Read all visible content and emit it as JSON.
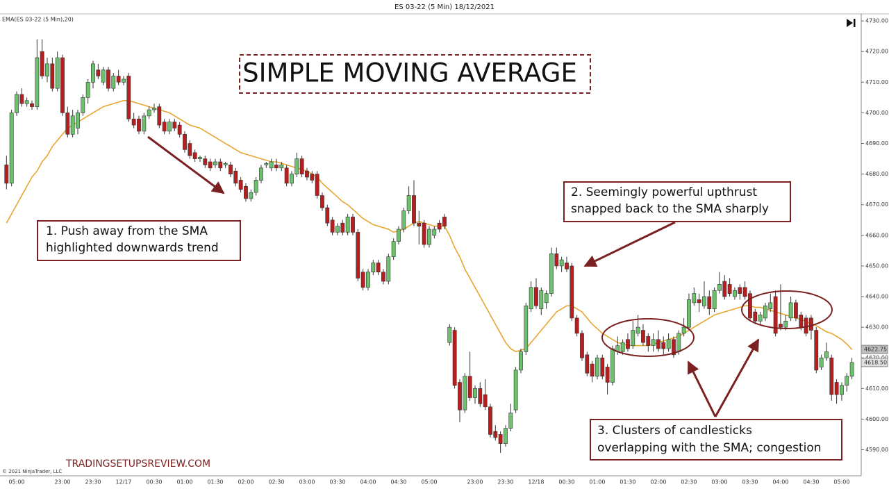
{
  "chart_data": {
    "type": "candlestick",
    "title": "ES 03-22 (5 Min)  18/12/2021",
    "indicator_label": "EMA(ES 03-22 (5 Min),20)",
    "headline": "SIMPLE MOVING AVERAGE",
    "annotations": [
      {
        "lines": [
          "1. Push away from the SMA",
          "highlighted downwards trend"
        ]
      },
      {
        "lines": [
          "2. Seemingly powerful upthrust",
          "snapped back to the SMA sharply"
        ]
      },
      {
        "lines": [
          "3. Clusters of candlesticks",
          "overlapping with the SMA; congestion"
        ]
      }
    ],
    "watermark": "TRADINGSETUPSREVIEW.COM",
    "copyright": "© 2021 NinjaTrader, LLC",
    "up_color": "#6cc16c",
    "down_color": "#b51f1f",
    "ylim": [
      4581.5,
      4732.3
    ],
    "yticks": [
      {
        "value": 4730,
        "label": "4730.00"
      },
      {
        "value": 4720,
        "label": "4720.00"
      },
      {
        "value": 4710,
        "label": "4710.00"
      },
      {
        "value": 4700,
        "label": "4700.00"
      },
      {
        "value": 4690,
        "label": "4690.00"
      },
      {
        "value": 4680,
        "label": "4680.00"
      },
      {
        "value": 4670,
        "label": "4670.00"
      },
      {
        "value": 4660,
        "label": "4660.00"
      },
      {
        "value": 4650,
        "label": "4650.00"
      },
      {
        "value": 4640,
        "label": "4640.00"
      },
      {
        "value": 4630,
        "label": "4630.00"
      },
      {
        "value": 4620,
        "label": "4620.00"
      },
      {
        "value": 4610,
        "label": "4610.00"
      },
      {
        "value": 4600,
        "label": "4600.00"
      },
      {
        "value": 4590,
        "label": "4590.00"
      }
    ],
    "categories": [
      null,
      null,
      "05:00",
      null,
      null,
      null,
      null,
      null,
      null,
      null,
      null,
      "23:00",
      null,
      null,
      null,
      null,
      null,
      "23:30",
      null,
      null,
      null,
      null,
      null,
      "12/17",
      null,
      null,
      null,
      null,
      null,
      "00:30",
      null,
      null,
      null,
      null,
      null,
      "01:00",
      null,
      null,
      null,
      null,
      null,
      "01:30",
      null,
      null,
      null,
      null,
      null,
      "02:00",
      null,
      null,
      null,
      null,
      null,
      "02:30",
      null,
      null,
      null,
      null,
      null,
      "03:00",
      null,
      null,
      null,
      null,
      null,
      "03:30",
      null,
      null,
      null,
      null,
      null,
      "04:00",
      null,
      null,
      null,
      null,
      null,
      "04:30",
      null,
      null,
      null,
      null,
      null,
      "05:00",
      null,
      null,
      null,
      null,
      null,
      null,
      null,
      null,
      "23:00",
      null,
      null,
      null,
      null,
      null,
      "23:30",
      null,
      null,
      null,
      null,
      null,
      "12/18",
      null,
      null,
      null,
      null,
      null,
      "00:30",
      null,
      null,
      null,
      null,
      null,
      "01:00",
      null,
      null,
      null,
      null,
      null,
      "01:30",
      null,
      null,
      null,
      null,
      null,
      "02:00",
      null,
      null,
      null,
      null,
      null,
      "02:30",
      null,
      null,
      null,
      null,
      null,
      "03:00",
      null,
      null,
      null,
      null,
      null,
      "03:30",
      null,
      null,
      null,
      null,
      null,
      "04:00",
      null,
      null,
      null,
      null,
      null,
      "04:30",
      null,
      null,
      null,
      null,
      null,
      "05:00",
      null,
      null
    ],
    "candles": [
      [
        4683,
        4686,
        4675,
        4677
      ],
      [
        4677,
        4701,
        4676,
        4700
      ],
      [
        4700,
        4707,
        4699,
        4706
      ],
      [
        4706,
        4708,
        4702,
        4703
      ],
      [
        4703,
        4705,
        4702,
        4704
      ],
      [
        4703,
        4704,
        4701,
        4702
      ],
      [
        4702,
        4724,
        4701,
        4718
      ],
      [
        4720,
        4724,
        4711,
        4712
      ],
      [
        4712,
        4718,
        4710,
        4716
      ],
      [
        4716,
        4718,
        4707,
        4708
      ],
      [
        4708,
        4720,
        4707,
        4718
      ],
      [
        4718,
        4719,
        4699,
        4700
      ],
      [
        4700,
        4702,
        4692,
        4693
      ],
      [
        4693,
        4701,
        4692,
        4699
      ],
      [
        4695,
        4701,
        4693,
        4700
      ],
      [
        4700,
        4706,
        4699,
        4705
      ],
      [
        4705,
        4711,
        4703,
        4710
      ],
      [
        4710,
        4717,
        4708,
        4716
      ],
      [
        4714,
        4716,
        4711,
        4712
      ],
      [
        4710,
        4715,
        4709,
        4714
      ],
      [
        4714,
        4715,
        4707,
        4708
      ],
      [
        4708,
        4713,
        4707,
        4712
      ],
      [
        4712,
        4714,
        4709,
        4710
      ],
      [
        4710,
        4712,
        4709,
        4711
      ],
      [
        4712,
        4713,
        4697,
        4698
      ],
      [
        4698,
        4700,
        4695,
        4696
      ],
      [
        4698,
        4699,
        4693,
        4694
      ],
      [
        4694,
        4700,
        4693,
        4699
      ],
      [
        4699,
        4702,
        4698,
        4701
      ],
      [
        4701,
        4703,
        4700,
        4701.5
      ],
      [
        4702,
        4703,
        4695,
        4696
      ],
      [
        4697,
        4698,
        4693,
        4694
      ],
      [
        4694,
        4698,
        4693,
        4697
      ],
      [
        4697,
        4698,
        4694,
        4695
      ],
      [
        4696,
        4697,
        4692,
        4693
      ],
      [
        4693,
        4694,
        4687,
        4688
      ],
      [
        4690,
        4691,
        4685,
        4686
      ],
      [
        4687,
        4688,
        4684,
        4685
      ],
      [
        4685,
        4686,
        4684,
        4685.5
      ],
      [
        4685,
        4686,
        4682,
        4683
      ],
      [
        4684,
        4685,
        4681,
        4682
      ],
      [
        4683,
        4685,
        4682,
        4684
      ],
      [
        4684,
        4685,
        4681,
        4682
      ],
      [
        4683,
        4684,
        4682,
        4683.5
      ],
      [
        4683,
        4684,
        4679,
        4680
      ],
      [
        4681,
        4682,
        4676,
        4677
      ],
      [
        4678,
        4679,
        4674,
        4675
      ],
      [
        4676,
        4677,
        4671,
        4672
      ],
      [
        4672,
        4675,
        4671,
        4674
      ],
      [
        4674,
        4679,
        4673,
        4678
      ],
      [
        4678,
        4683,
        4677,
        4682
      ],
      [
        4683,
        4684,
        4682,
        4683.5
      ],
      [
        4682,
        4685,
        4681,
        4684
      ],
      [
        4683,
        4685,
        4681,
        4682
      ],
      [
        4682,
        4684,
        4681,
        4683
      ],
      [
        4682,
        4683,
        4676,
        4677
      ],
      [
        4677,
        4681,
        4676,
        4680
      ],
      [
        4680,
        4687,
        4679,
        4685
      ],
      [
        4685,
        4686,
        4679,
        4680
      ],
      [
        4681,
        4682,
        4678,
        4679
      ],
      [
        4680,
        4681,
        4677,
        4678
      ],
      [
        4680,
        4681,
        4672,
        4673
      ],
      [
        4673,
        4674,
        4668,
        4669
      ],
      [
        4669,
        4670,
        4663,
        4664
      ],
      [
        4665,
        4666,
        4660,
        4661
      ],
      [
        4661,
        4664,
        4660,
        4663
      ],
      [
        4664,
        4665,
        4660,
        4661
      ],
      [
        4661,
        4667,
        4660,
        4666
      ],
      [
        4666,
        4667,
        4660,
        4661
      ],
      [
        4661,
        4662,
        4645,
        4646
      ],
      [
        4648,
        4649,
        4642,
        4643
      ],
      [
        4643,
        4649,
        4642,
        4648
      ],
      [
        4648,
        4652,
        4647,
        4651
      ],
      [
        4651,
        4652,
        4647,
        4648
      ],
      [
        4648,
        4649,
        4644,
        4645
      ],
      [
        4645,
        4654,
        4644,
        4653
      ],
      [
        4653,
        4659,
        4652,
        4658
      ],
      [
        4658,
        4663,
        4657,
        4662
      ],
      [
        4662,
        4669,
        4661,
        4668
      ],
      [
        4668,
        4676,
        4667,
        4673
      ],
      [
        4673,
        4678,
        4663,
        4664
      ],
      [
        4664,
        4668,
        4657,
        4663
      ],
      [
        4664,
        4665,
        4656,
        4657
      ],
      [
        4657,
        4663,
        4656,
        4662
      ],
      [
        4660,
        4663,
        4659,
        4662
      ],
      [
        4664,
        4665,
        4661,
        4662
      ],
      [
        4666,
        4667,
        4662,
        4663
      ],
      [
        4625,
        4631,
        4624,
        4630
      ],
      [
        4629,
        4630,
        4610,
        4611
      ],
      [
        4612,
        4613,
        4599,
        4603
      ],
      [
        4603,
        4615,
        4602,
        4614
      ],
      [
        4614,
        4622,
        4606,
        4607
      ],
      [
        4607,
        4611,
        4605,
        4610
      ],
      [
        4610,
        4612,
        4604,
        4605
      ],
      [
        4608,
        4613,
        4603,
        4604
      ],
      [
        4604,
        4605,
        4594,
        4595
      ],
      [
        4596,
        4598,
        4593,
        4594
      ],
      [
        4595,
        4596,
        4589,
        4592
      ],
      [
        4592,
        4598,
        4591,
        4597
      ],
      [
        4597,
        4605,
        4596,
        4602
      ],
      [
        4603,
        4617,
        4602,
        4616
      ],
      [
        4616,
        4623,
        4615,
        4622
      ],
      [
        4622,
        4638,
        4621,
        4637
      ],
      [
        4636,
        4645,
        4635,
        4643
      ],
      [
        4643,
        4646,
        4636,
        4637
      ],
      [
        4636,
        4643,
        4634,
        4642
      ],
      [
        4638,
        4642,
        4636,
        4641
      ],
      [
        4641,
        4656,
        4640,
        4654
      ],
      [
        4654,
        4656,
        4649,
        4650
      ],
      [
        4650,
        4653,
        4648,
        4652
      ],
      [
        4651,
        4653,
        4648,
        4649
      ],
      [
        4650,
        4651,
        4632,
        4633
      ],
      [
        4633,
        4634,
        4627,
        4628
      ],
      [
        4628,
        4629,
        4619,
        4620
      ],
      [
        4621,
        4622,
        4614,
        4615
      ],
      [
        4618,
        4619,
        4612,
        4614
      ],
      [
        4614,
        4621,
        4613,
        4620
      ],
      [
        4620,
        4621,
        4613,
        4614
      ],
      [
        4617,
        4618,
        4608,
        4612
      ],
      [
        4612,
        4624,
        4611,
        4623
      ],
      [
        4622,
        4627,
        4621,
        4624
      ],
      [
        4622,
        4626,
        4621,
        4625
      ],
      [
        4626,
        4628,
        4622,
        4623
      ],
      [
        4624,
        4632,
        4623,
        4629
      ],
      [
        4628,
        4634,
        4627,
        4630
      ],
      [
        4629,
        4631,
        4624,
        4625
      ],
      [
        4627,
        4628,
        4622,
        4624
      ],
      [
        4624,
        4628,
        4622,
        4626
      ],
      [
        4626,
        4629,
        4622,
        4623
      ],
      [
        4625,
        4627,
        4621,
        4623
      ],
      [
        4623,
        4628,
        4622,
        4626
      ],
      [
        4626,
        4627,
        4620,
        4621
      ],
      [
        4622,
        4629,
        4621,
        4628
      ],
      [
        4628,
        4633,
        4627,
        4630
      ],
      [
        4630,
        4641,
        4629,
        4639
      ],
      [
        4638,
        4643,
        4637,
        4641
      ],
      [
        4639,
        4641,
        4635,
        4638
      ],
      [
        4637,
        4645,
        4636,
        4640
      ],
      [
        4640,
        4642,
        4634,
        4636
      ],
      [
        4636,
        4643,
        4635,
        4642
      ],
      [
        4642,
        4648,
        4641,
        4644
      ],
      [
        4645,
        4647,
        4639,
        4640
      ],
      [
        4644,
        4646,
        4640,
        4641
      ],
      [
        4640,
        4643,
        4639,
        4642
      ],
      [
        4643,
        4644,
        4639,
        4641
      ],
      [
        4643,
        4645,
        4639,
        4640
      ],
      [
        4641,
        4642,
        4632,
        4633
      ],
      [
        4635,
        4636,
        4631,
        4632
      ],
      [
        4632,
        4635,
        4631,
        4634
      ],
      [
        4633,
        4638,
        4632,
        4637
      ],
      [
        4636,
        4641,
        4635,
        4638
      ],
      [
        4640,
        4642,
        4627,
        4628
      ],
      [
        4631,
        4644,
        4629,
        4630
      ],
      [
        4630,
        4634,
        4629,
        4632
      ],
      [
        4633,
        4640,
        4632,
        4638
      ],
      [
        4638,
        4639,
        4632,
        4633
      ],
      [
        4634,
        4635,
        4629,
        4630
      ],
      [
        4633,
        4634,
        4627,
        4628
      ],
      [
        4633,
        4634,
        4626,
        4629
      ],
      [
        4629,
        4630,
        4615,
        4616
      ],
      [
        4617,
        4621,
        4616,
        4620
      ],
      [
        4620,
        4625,
        4619,
        4622
      ],
      [
        4620,
        4621,
        4606,
        4608
      ],
      [
        4612,
        4613,
        4605,
        4608
      ],
      [
        4608,
        4612,
        4606,
        4611
      ],
      [
        4611,
        4615,
        4609,
        4614
      ],
      [
        4614,
        4620,
        4613,
        4618.5
      ]
    ],
    "close_label": "4618.50",
    "sma": {
      "color": "#e8a530",
      "values": [
        4664,
        4667,
        4670,
        4673,
        4676,
        4679,
        4681,
        4684,
        4686,
        4689,
        4691,
        4693,
        4695,
        4696,
        4697,
        4698,
        4699,
        4700,
        4701,
        4702,
        4702.5,
        4703,
        4703.5,
        4704,
        4704,
        4703.5,
        4703,
        4702.5,
        4702,
        4701.5,
        4701,
        4700.5,
        4700,
        4699,
        4698,
        4697,
        4696,
        4695.5,
        4695,
        4694,
        4693,
        4692,
        4691,
        4690,
        4689,
        4688,
        4687,
        4686.5,
        4686,
        4685.5,
        4685,
        4684.5,
        4684,
        4684,
        4683.5,
        4683,
        4682.5,
        4682,
        4681.5,
        4681,
        4680,
        4679,
        4677,
        4675.5,
        4674,
        4672.5,
        4671,
        4670,
        4668.5,
        4667,
        4665.5,
        4664.5,
        4663.5,
        4663,
        4662.5,
        4662,
        4661,
        4661.5,
        4662,
        4663,
        4664,
        4664.5,
        4664,
        4663.5,
        4663,
        4663,
        4663,
        4660,
        4656,
        4653,
        4649,
        4646,
        4643,
        4640,
        4637,
        4634,
        4631,
        4628,
        4625,
        4623,
        4622,
        4622.5,
        4623,
        4625,
        4627,
        4629,
        4631,
        4633,
        4635,
        4636,
        4637,
        4637,
        4636,
        4635,
        4633,
        4631,
        4629.5,
        4628,
        4627,
        4626,
        4625,
        4624.5,
        4624,
        4624,
        4624,
        4624,
        4624,
        4624.5,
        4625,
        4625.5,
        4626,
        4626.5,
        4627,
        4628,
        4629,
        4630,
        4631,
        4632,
        4633,
        4634,
        4634.5,
        4635,
        4635.5,
        4636,
        4636.5,
        4637,
        4637,
        4636.5,
        4636.5,
        4636,
        4635.5,
        4635,
        4634.5,
        4634,
        4633.5,
        4633,
        4632.5,
        4632,
        4631,
        4630.5,
        4629.5,
        4628.5,
        4628,
        4627,
        4626,
        4624.5,
        4622.75
      ]
    }
  }
}
